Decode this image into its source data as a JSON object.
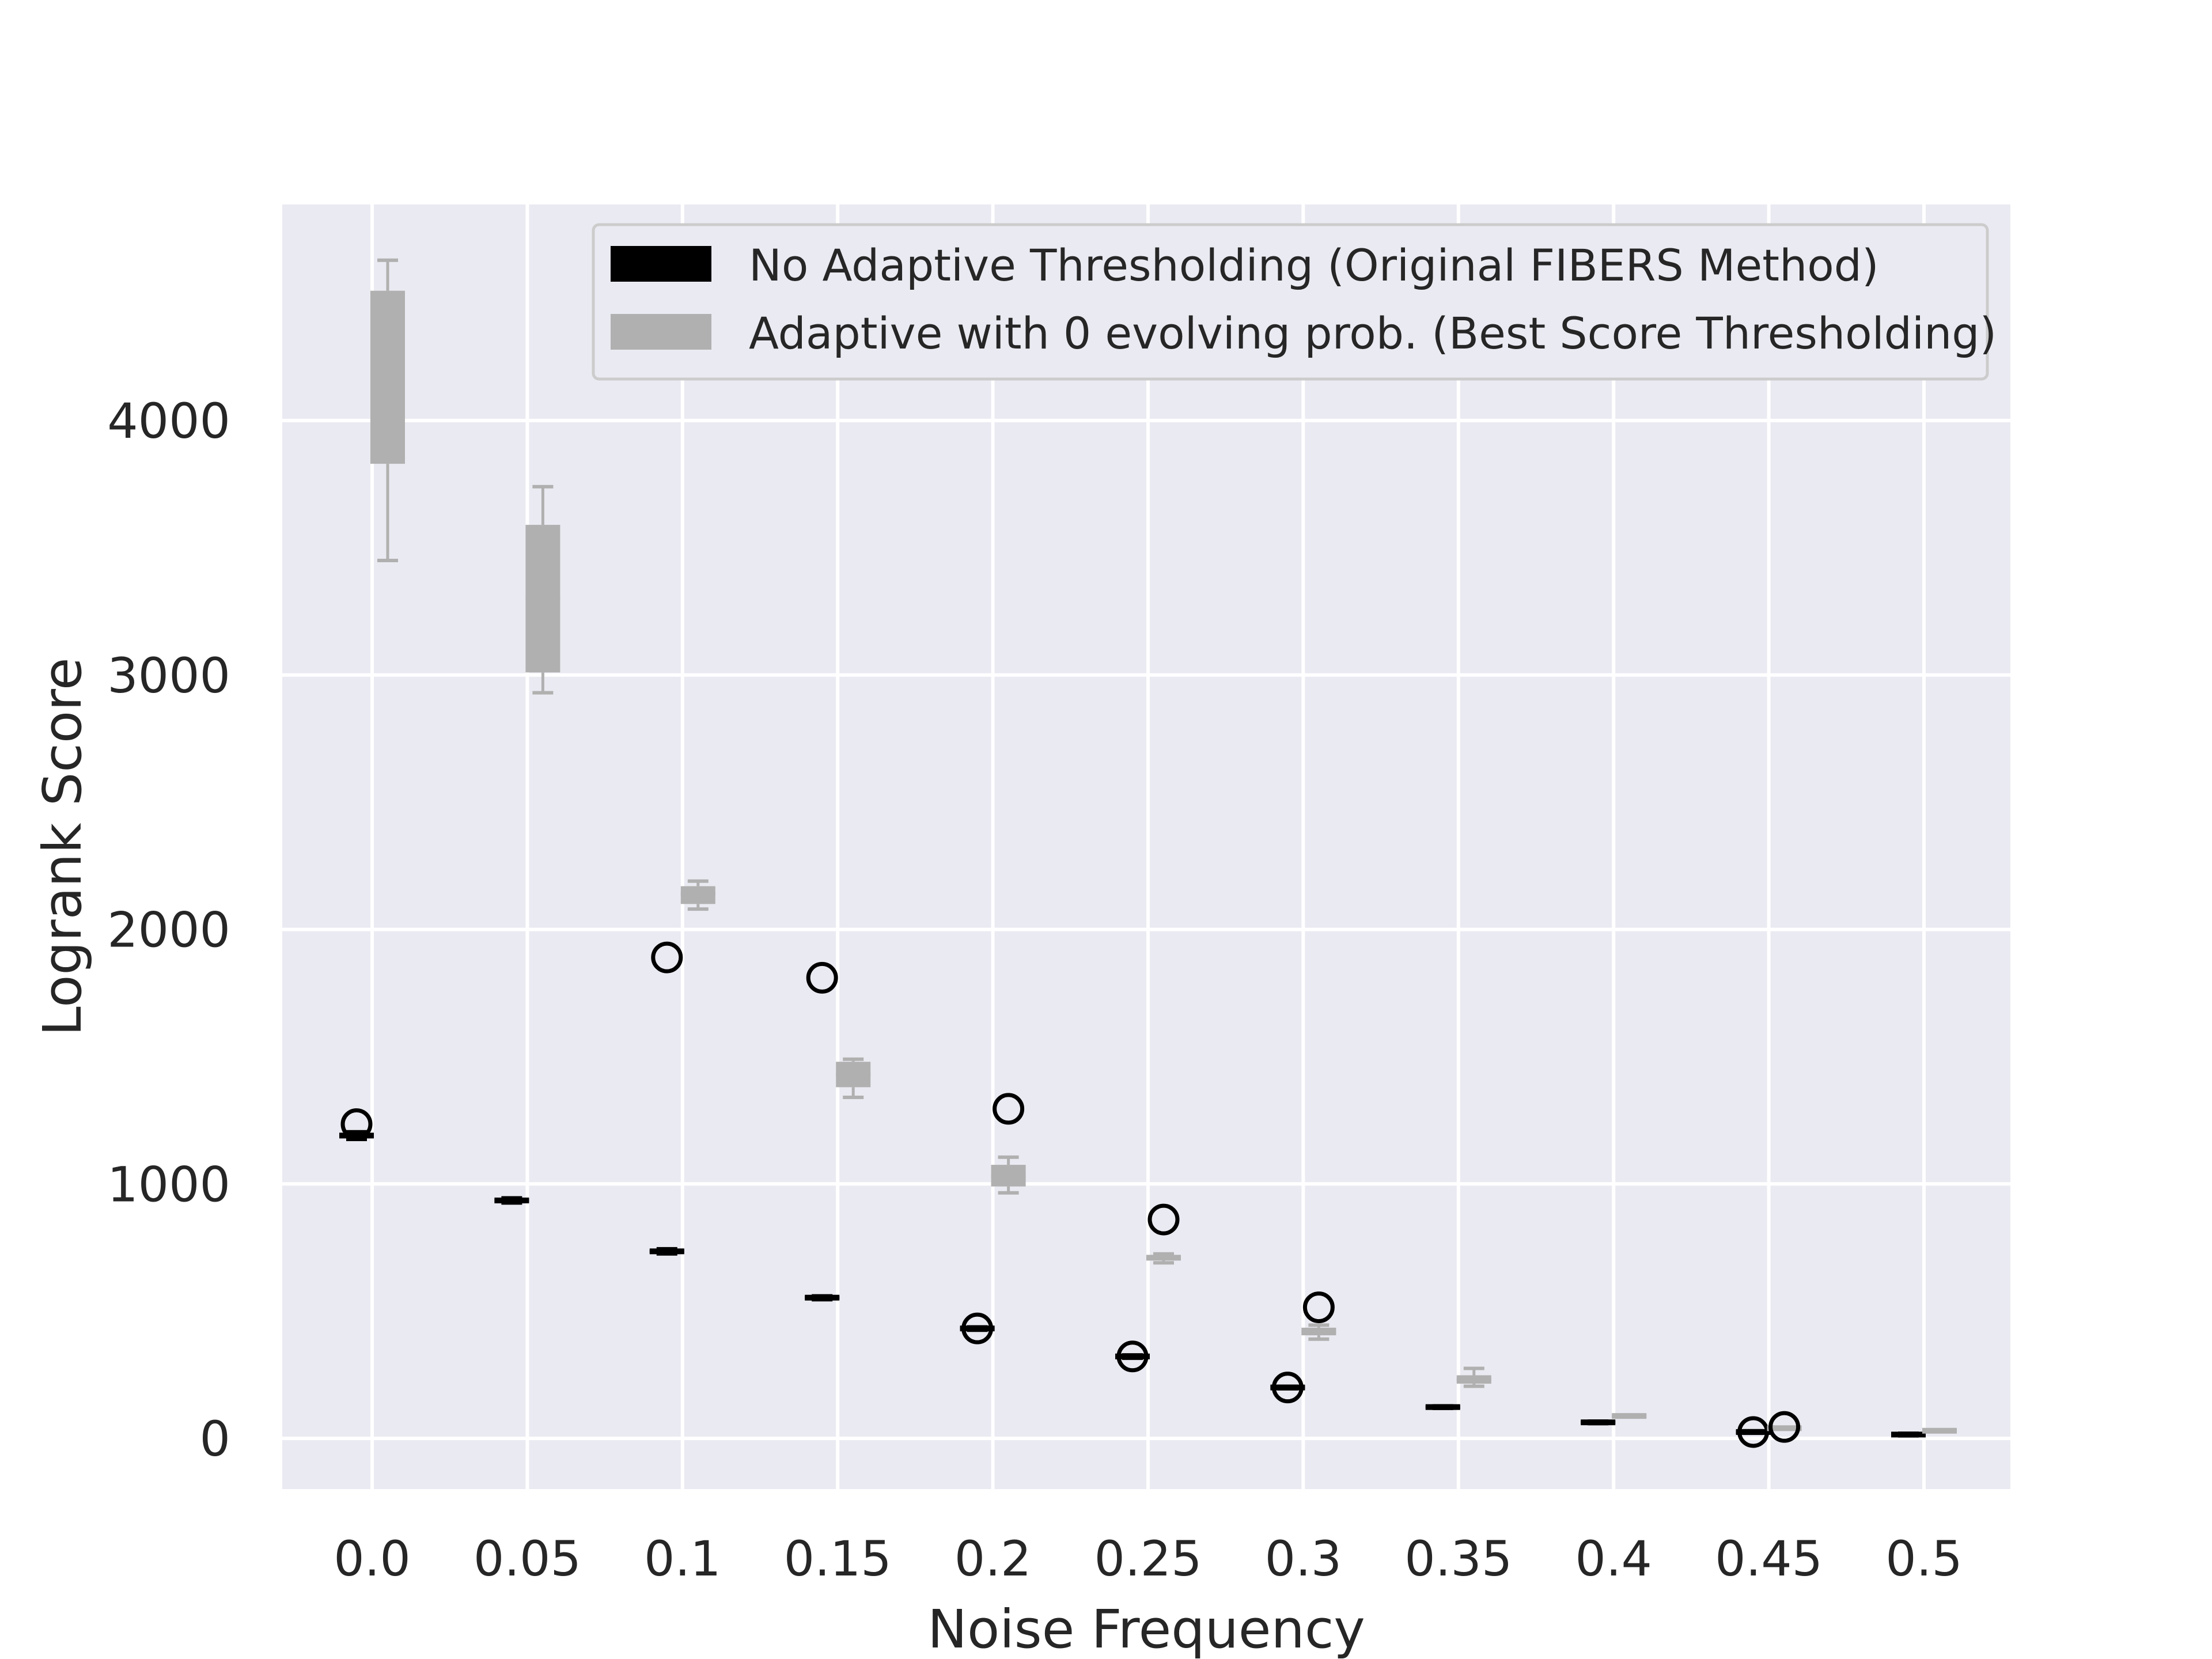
{
  "chart_data": {
    "type": "box",
    "xlabel": "Noise Frequency",
    "ylabel": "Logrank Score",
    "categories": [
      "0.0",
      "0.05",
      "0.1",
      "0.15",
      "0.2",
      "0.25",
      "0.3",
      "0.35",
      "0.4",
      "0.45",
      "0.5"
    ],
    "yticks": [
      0,
      1000,
      2000,
      3000,
      4000
    ],
    "ylim": [
      -200,
      4850
    ],
    "grid": true,
    "legend_position": "top-right",
    "series": [
      {
        "name": "No Adaptive Thresholding (Original FIBERS Method)",
        "color": "#000000",
        "boxes": [
          {
            "whislo": 1175,
            "q1": 1180,
            "med": 1190,
            "q3": 1200,
            "whishi": 1205,
            "fliers": [
              1235
            ]
          },
          {
            "whislo": 925,
            "q1": 928,
            "med": 935,
            "q3": 942,
            "whishi": 945,
            "fliers": []
          },
          {
            "whislo": 725,
            "q1": 728,
            "med": 735,
            "q3": 742,
            "whishi": 745,
            "fliers": [
              1890
            ]
          },
          {
            "whislo": 545,
            "q1": 548,
            "med": 553,
            "q3": 558,
            "whishi": 560,
            "fliers": [
              1810
            ]
          },
          {
            "whislo": 425,
            "q1": 428,
            "med": 432,
            "q3": 436,
            "whishi": 438,
            "fliers": [
              432
            ]
          },
          {
            "whislo": 315,
            "q1": 318,
            "med": 322,
            "q3": 326,
            "whishi": 328,
            "fliers": [
              322
            ]
          },
          {
            "whislo": 195,
            "q1": 197,
            "med": 200,
            "q3": 203,
            "whishi": 205,
            "fliers": [
              200
            ]
          },
          {
            "whislo": 118,
            "q1": 120,
            "med": 123,
            "q3": 126,
            "whishi": 128,
            "fliers": []
          },
          {
            "whislo": 58,
            "q1": 60,
            "med": 63,
            "q3": 66,
            "whishi": 68,
            "fliers": []
          },
          {
            "whislo": 20,
            "q1": 22,
            "med": 25,
            "q3": 28,
            "whishi": 30,
            "fliers": [
              25
            ]
          },
          {
            "whislo": 10,
            "q1": 12,
            "med": 15,
            "q3": 18,
            "whishi": 20,
            "fliers": []
          }
        ]
      },
      {
        "name": "Adaptive with 0 evolving prob. (Best Score Thresholding)",
        "color": "#b0b0b0",
        "boxes": [
          {
            "whislo": 3450,
            "q1": 3830,
            "med": 4150,
            "q3": 4510,
            "whishi": 4630,
            "fliers": []
          },
          {
            "whislo": 2930,
            "q1": 3010,
            "med": 3300,
            "q3": 3590,
            "whishi": 3740,
            "fliers": []
          },
          {
            "whislo": 2080,
            "q1": 2100,
            "med": 2140,
            "q3": 2170,
            "whishi": 2190,
            "fliers": []
          },
          {
            "whislo": 1340,
            "q1": 1380,
            "med": 1430,
            "q3": 1480,
            "whishi": 1490,
            "fliers": []
          },
          {
            "whislo": 965,
            "q1": 990,
            "med": 1030,
            "q3": 1075,
            "whishi": 1105,
            "fliers": [
              1295
            ]
          },
          {
            "whislo": 690,
            "q1": 700,
            "med": 710,
            "q3": 720,
            "whishi": 725,
            "fliers": [
              860
            ]
          },
          {
            "whislo": 390,
            "q1": 405,
            "med": 420,
            "q3": 435,
            "whishi": 445,
            "fliers": [
              515
            ]
          },
          {
            "whislo": 205,
            "q1": 215,
            "med": 230,
            "q3": 248,
            "whishi": 275,
            "fliers": []
          },
          {
            "whislo": 84,
            "q1": 86,
            "med": 88,
            "q3": 90,
            "whishi": 92,
            "fliers": []
          },
          {
            "whislo": 36,
            "q1": 38,
            "med": 40,
            "q3": 42,
            "whishi": 44,
            "fliers": [
              45
            ]
          },
          {
            "whislo": 26,
            "q1": 28,
            "med": 30,
            "q3": 32,
            "whishi": 34,
            "fliers": []
          }
        ]
      }
    ]
  }
}
